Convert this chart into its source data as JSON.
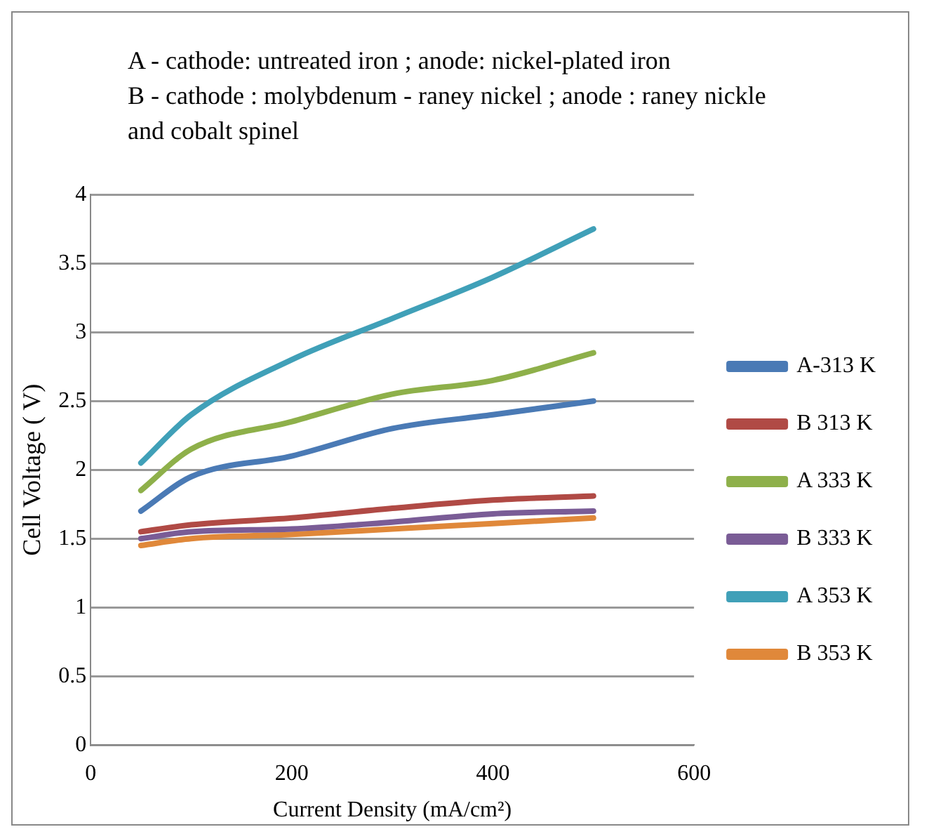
{
  "chart_data": {
    "type": "line",
    "title": "A - cathode: untreated iron ; anode: nickel-plated iron\nB - cathode : molybdenum - raney nickel  ; anode : raney nickle and cobalt spinel",
    "xlabel": "Current Density (mA/cm²)",
    "ylabel": "Cell Voltage ( V)",
    "x": [
      50,
      100,
      200,
      300,
      400,
      500
    ],
    "series": [
      {
        "name": "A-313 K",
        "color": "#4a7ab5",
        "values": [
          1.7,
          1.95,
          2.1,
          2.3,
          2.4,
          2.5
        ]
      },
      {
        "name": "B 313 K",
        "color": "#b04a45",
        "values": [
          1.55,
          1.6,
          1.65,
          1.72,
          1.78,
          1.81
        ]
      },
      {
        "name": "A 333 K",
        "color": "#8eb04a",
        "values": [
          1.85,
          2.15,
          2.35,
          2.55,
          2.65,
          2.85
        ]
      },
      {
        "name": "B 333 K",
        "color": "#7a5c96",
        "values": [
          1.5,
          1.55,
          1.57,
          1.62,
          1.68,
          1.7
        ]
      },
      {
        "name": "A 353 K",
        "color": "#40a0b8",
        "values": [
          2.05,
          2.4,
          2.8,
          3.1,
          3.4,
          3.75
        ]
      },
      {
        "name": "B 353 K",
        "color": "#e0883a",
        "values": [
          1.45,
          1.5,
          1.53,
          1.57,
          1.61,
          1.65
        ]
      }
    ],
    "xlim": [
      0,
      600
    ],
    "xticks": [
      0,
      200,
      400,
      600
    ],
    "ylim": [
      0,
      4
    ],
    "yticks": [
      0,
      0.5,
      1,
      1.5,
      2,
      2.5,
      3,
      3.5,
      4
    ],
    "grid": "y",
    "legend": "right",
    "marker": "none",
    "line_style": "solid"
  }
}
